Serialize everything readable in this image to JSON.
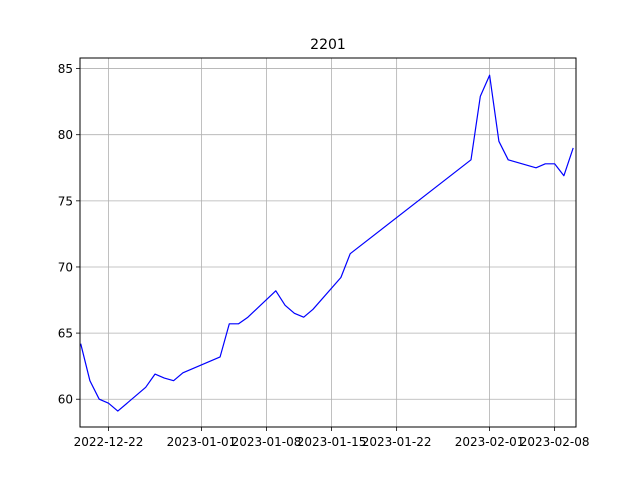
{
  "chart_data": {
    "type": "line",
    "title": "2201",
    "xlabel": "",
    "ylabel": "",
    "x_axis": "date",
    "xlim": [
      "2022-12-19",
      "2023-02-10"
    ],
    "ylim": [
      57.9,
      85.8
    ],
    "x_ticks": [
      "2022-12-22",
      "2023-01-01",
      "2023-01-08",
      "2023-01-15",
      "2023-01-22",
      "2023-02-01",
      "2023-02-08"
    ],
    "y_ticks": [
      60,
      65,
      70,
      75,
      80,
      85
    ],
    "grid": true,
    "legend": "none",
    "series": [
      {
        "color": "#0000ff",
        "x": [
          "2022-12-19",
          "2022-12-20",
          "2022-12-21",
          "2022-12-22",
          "2022-12-23",
          "2022-12-26",
          "2022-12-27",
          "2022-12-28",
          "2022-12-29",
          "2022-12-30",
          "2023-01-03",
          "2023-01-04",
          "2023-01-05",
          "2023-01-06",
          "2023-01-09",
          "2023-01-10",
          "2023-01-11",
          "2023-01-12",
          "2023-01-13",
          "2023-01-16",
          "2023-01-17",
          "2023-01-30",
          "2023-01-31",
          "2023-02-01",
          "2023-02-02",
          "2023-02-03",
          "2023-02-06",
          "2023-02-07",
          "2023-02-08",
          "2023-02-09",
          "2023-02-10"
        ],
        "y": [
          64.2,
          61.4,
          60.0,
          59.7,
          59.1,
          60.9,
          61.9,
          61.6,
          61.4,
          62.0,
          63.2,
          65.7,
          65.7,
          66.2,
          68.2,
          67.1,
          66.5,
          66.2,
          66.8,
          69.2,
          71.0,
          78.1,
          82.9,
          84.5,
          79.5,
          78.1,
          77.5,
          77.8,
          77.8,
          76.9,
          79.0
        ]
      }
    ]
  }
}
